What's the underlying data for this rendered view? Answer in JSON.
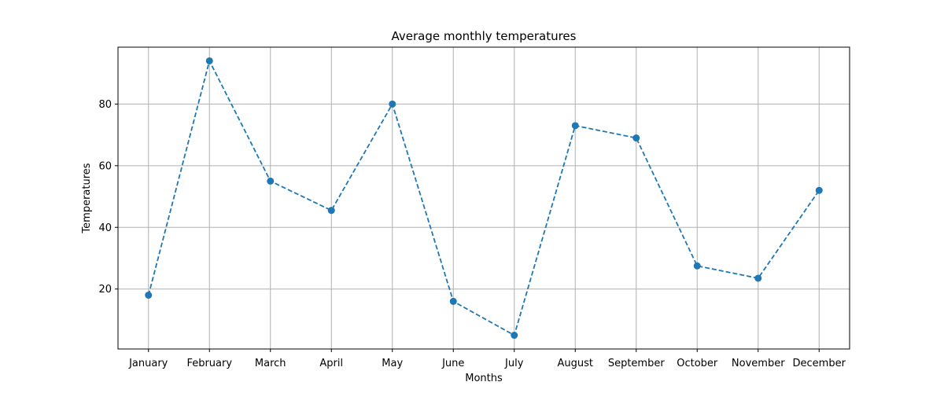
{
  "chart_data": {
    "type": "line",
    "title": "Average monthly temperatures",
    "xlabel": "Months",
    "ylabel": "Temperatures",
    "categories": [
      "January",
      "February",
      "March",
      "April",
      "May",
      "June",
      "July",
      "August",
      "September",
      "October",
      "November",
      "December"
    ],
    "series": [
      {
        "values": [
          18,
          94,
          55,
          45.5,
          80,
          16,
          5,
          73,
          69,
          27.5,
          23.5,
          52
        ],
        "color": "#1f77b4",
        "line_style": "dashed",
        "marker": "circle"
      }
    ],
    "ylim": [
      0.55,
      98.45
    ],
    "yticks": [
      20,
      40,
      60,
      80
    ],
    "grid": true,
    "grid_color": "#b0b0b0",
    "legend": null
  }
}
